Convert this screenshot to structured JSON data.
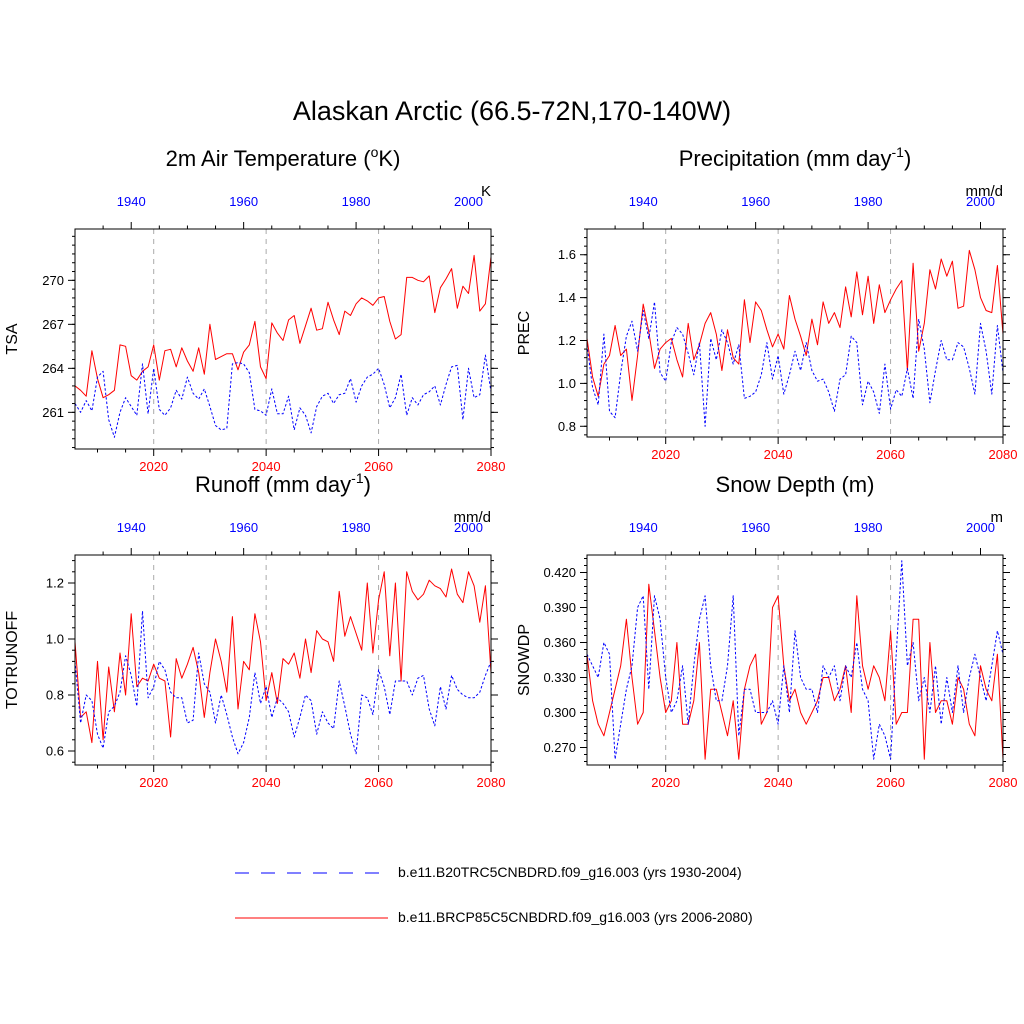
{
  "page": {
    "title": "Alaskan Arctic (66.5-72N,170-140W)"
  },
  "legend": {
    "hist_label": "b.e11.B20TRC5CNBDRD.f09_g16.003 (yrs 1930-2004)",
    "future_label": "b.e11.BRCP85C5CNBDRD.f09_g16.003 (yrs 2006-2080)",
    "hist_color": "#0000ff",
    "future_color": "#ff0000"
  },
  "chart_data": [
    {
      "type": "line",
      "title_main": "2m Air Temperature (",
      "title_sup": "o",
      "title_post": "K)",
      "ylabel": "TSA",
      "units": "K",
      "ylim": [
        258.5,
        273.5
      ],
      "yticks": [
        261,
        264,
        267,
        270
      ],
      "ytick_labels": [
        "261",
        "264",
        "267",
        "270"
      ],
      "bottom_axis": {
        "range": [
          2006,
          2080
        ],
        "ticks": [
          2020,
          2040,
          2060,
          2080
        ]
      },
      "top_axis": {
        "range": [
          1930,
          2004
        ],
        "ticks": [
          1940,
          1960,
          1980,
          2000
        ]
      },
      "dashed_gridlines_at": [
        2020,
        2040,
        2060
      ],
      "series": [
        {
          "name": "b.e11.BRCP85C5CNBDRD.f09_g16.003 (yrs 2006-2080)",
          "color": "#ff0000",
          "dash": "solid",
          "values": [
            262.8,
            262.5,
            262.1,
            265.2,
            263.3,
            262.0,
            262.2,
            262.5,
            265.6,
            265.5,
            263.5,
            263.2,
            263.8,
            264.1,
            265.6,
            263.2,
            265.2,
            265.3,
            264.1,
            265.4,
            264.5,
            263.8,
            265.4,
            263.6,
            267.0,
            264.6,
            264.8,
            265.0,
            265.0,
            263.9,
            265.1,
            265.6,
            267.2,
            264.1,
            263.3,
            267.1,
            266.4,
            265.9,
            267.3,
            267.6,
            265.7,
            266.9,
            268.1,
            266.6,
            266.7,
            268.5,
            267.3,
            266.3,
            267.9,
            267.6,
            268.4,
            268.8,
            268.6,
            268.3,
            268.8,
            268.9,
            267.2,
            266.0,
            266.3,
            270.2,
            270.2,
            270.0,
            269.9,
            270.3,
            267.8,
            269.5,
            270.1,
            270.8,
            268.1,
            269.6,
            269.1,
            271.7,
            267.9,
            268.4,
            271.6
          ]
        },
        {
          "name": "b.e11.B20TRC5CNBDRD.f09_g16.003 (yrs 1930-2004)",
          "color": "#0000ff",
          "dash": "dashed",
          "values": [
            261.6,
            261.0,
            261.8,
            261.1,
            263.4,
            263.8,
            260.5,
            259.3,
            261.0,
            262.0,
            261.4,
            260.8,
            264.3,
            260.9,
            264.0,
            261.2,
            260.8,
            261.3,
            262.5,
            261.9,
            263.4,
            262.3,
            261.9,
            262.6,
            261.4,
            260.1,
            259.8,
            259.9,
            264.3,
            264.4,
            264.3,
            263.7,
            261.2,
            261.1,
            260.8,
            262.6,
            260.9,
            260.9,
            262.1,
            259.8,
            261.3,
            260.8,
            259.6,
            261.4,
            262.1,
            262.3,
            261.6,
            262.2,
            262.3,
            263.3,
            261.7,
            262.8,
            263.4,
            263.6,
            264.0,
            262.9,
            261.3,
            262.0,
            263.6,
            260.8,
            262.0,
            261.5,
            262.2,
            262.4,
            262.8,
            261.5,
            262.9,
            264.1,
            264.2,
            260.5,
            264.0,
            262.0,
            262.2,
            264.9,
            262.4
          ]
        }
      ]
    },
    {
      "type": "line",
      "title_main": "Precipitation (mm day",
      "title_sup": "-1",
      "title_post": ")",
      "ylabel": "PREC",
      "units": "mm/d",
      "ylim": [
        0.75,
        1.72
      ],
      "yticks": [
        0.8,
        1.0,
        1.2,
        1.4,
        1.6
      ],
      "ytick_labels": [
        "0.8",
        "1.0",
        "1.2",
        "1.4",
        "1.6"
      ],
      "bottom_axis": {
        "range": [
          2006,
          2080
        ],
        "ticks": [
          2020,
          2040,
          2060,
          2080
        ]
      },
      "top_axis": {
        "range": [
          1930,
          2004
        ],
        "ticks": [
          1940,
          1960,
          1980,
          2000
        ]
      },
      "dashed_gridlines_at": [
        2020,
        2040,
        2060
      ],
      "series": [
        {
          "name": "b.e11.BRCP85C5CNBDRD.f09_g16.003 (yrs 2006-2080)",
          "color": "#ff0000",
          "dash": "solid",
          "values": [
            1.21,
            1.03,
            0.94,
            1.09,
            1.13,
            1.27,
            1.13,
            1.16,
            0.92,
            1.13,
            1.37,
            1.24,
            1.07,
            1.16,
            1.19,
            1.21,
            1.11,
            1.03,
            1.28,
            1.11,
            1.18,
            1.28,
            1.33,
            1.23,
            1.06,
            1.25,
            1.12,
            1.09,
            1.39,
            1.19,
            1.38,
            1.34,
            1.25,
            1.17,
            1.23,
            1.16,
            1.41,
            1.3,
            1.22,
            1.13,
            1.3,
            1.18,
            1.38,
            1.28,
            1.33,
            1.26,
            1.45,
            1.31,
            1.52,
            1.32,
            1.5,
            1.28,
            1.46,
            1.33,
            1.39,
            1.44,
            1.48,
            1.06,
            1.56,
            1.15,
            1.28,
            1.53,
            1.44,
            1.58,
            1.5,
            1.57,
            1.35,
            1.36,
            1.62,
            1.53,
            1.4,
            1.34,
            1.33,
            1.55,
            1.23
          ]
        },
        {
          "name": "b.e11.B20TRC5CNBDRD.f09_g16.003 (yrs 1930-2004)",
          "color": "#0000ff",
          "dash": "dashed",
          "values": [
            1.18,
            0.98,
            0.9,
            1.23,
            0.87,
            0.84,
            1.05,
            1.22,
            1.29,
            1.15,
            1.34,
            1.21,
            1.38,
            1.05,
            1.01,
            1.19,
            1.26,
            1.23,
            1.14,
            1.04,
            1.19,
            0.8,
            1.21,
            1.11,
            1.25,
            1.19,
            1.09,
            1.18,
            0.93,
            0.94,
            0.96,
            1.04,
            1.19,
            1.02,
            1.13,
            0.95,
            1.04,
            1.15,
            1.06,
            1.19,
            1.06,
            1.01,
            1.02,
            0.96,
            0.87,
            1.02,
            1.04,
            1.22,
            1.19,
            0.9,
            1.01,
            0.96,
            0.86,
            1.09,
            0.88,
            0.97,
            0.94,
            1.07,
            0.93,
            1.3,
            1.16,
            0.91,
            1.06,
            1.2,
            1.11,
            1.11,
            1.19,
            1.17,
            1.07,
            0.95,
            1.28,
            1.15,
            0.95,
            1.27,
            1.05
          ]
        }
      ]
    },
    {
      "type": "line",
      "title_main": "Runoff (mm day",
      "title_sup": "-1",
      "title_post": ")",
      "ylabel": "TOTRUNOFF",
      "units": "mm/d",
      "ylim": [
        0.55,
        1.3
      ],
      "yticks": [
        0.6,
        0.8,
        1.0,
        1.2
      ],
      "ytick_labels": [
        "0.6",
        "0.8",
        "1.0",
        "1.2"
      ],
      "bottom_axis": {
        "range": [
          2006,
          2080
        ],
        "ticks": [
          2020,
          2040,
          2060,
          2080
        ]
      },
      "top_axis": {
        "range": [
          1930,
          2004
        ],
        "ticks": [
          1940,
          1960,
          1980,
          2000
        ]
      },
      "dashed_gridlines_at": [
        2020,
        2040,
        2060
      ],
      "series": [
        {
          "name": "b.e11.BRCP85C5CNBDRD.f09_g16.003 (yrs 2006-2080)",
          "color": "#ff0000",
          "dash": "solid",
          "values": [
            0.99,
            0.72,
            0.74,
            0.63,
            0.92,
            0.64,
            0.9,
            0.74,
            0.95,
            0.8,
            1.09,
            0.83,
            0.86,
            0.85,
            0.91,
            0.86,
            0.85,
            0.65,
            0.93,
            0.86,
            0.91,
            0.97,
            0.88,
            0.72,
            0.88,
            1.0,
            0.92,
            0.81,
            1.08,
            0.75,
            0.92,
            0.89,
            1.09,
            0.99,
            0.78,
            0.88,
            0.77,
            0.93,
            0.91,
            0.95,
            0.86,
            1.0,
            0.88,
            1.03,
            1.0,
            0.99,
            0.92,
            1.17,
            1.01,
            1.08,
            1.02,
            0.96,
            1.2,
            0.95,
            1.14,
            1.24,
            0.94,
            1.2,
            0.85,
            1.24,
            1.17,
            1.14,
            1.16,
            1.21,
            1.19,
            1.18,
            1.15,
            1.25,
            1.16,
            1.13,
            1.24,
            1.19,
            1.06,
            1.19,
            0.88
          ]
        },
        {
          "name": "b.e11.B20TRC5CNBDRD.f09_g16.003 (yrs 1930-2004)",
          "color": "#0000ff",
          "dash": "dashed",
          "values": [
            0.92,
            0.7,
            0.8,
            0.78,
            0.66,
            0.61,
            0.74,
            0.76,
            0.81,
            0.94,
            0.87,
            0.76,
            1.1,
            0.79,
            0.83,
            0.92,
            0.89,
            0.81,
            0.79,
            0.79,
            0.7,
            0.71,
            0.95,
            0.84,
            0.81,
            0.7,
            0.8,
            0.73,
            0.65,
            0.59,
            0.63,
            0.72,
            0.88,
            0.77,
            0.83,
            0.72,
            0.79,
            0.77,
            0.74,
            0.65,
            0.72,
            0.8,
            0.78,
            0.66,
            0.74,
            0.7,
            0.68,
            0.85,
            0.76,
            0.66,
            0.59,
            0.8,
            0.79,
            0.73,
            0.89,
            0.83,
            0.73,
            0.85,
            0.85,
            0.85,
            0.8,
            0.86,
            0.87,
            0.75,
            0.69,
            0.83,
            0.75,
            0.87,
            0.82,
            0.8,
            0.79,
            0.79,
            0.81,
            0.87,
            0.92
          ]
        }
      ]
    },
    {
      "type": "line",
      "title_main": "Snow Depth (m)",
      "title_sup": "",
      "title_post": "",
      "ylabel": "SNOWDP",
      "units": "m",
      "ylim": [
        0.255,
        0.435
      ],
      "yticks": [
        0.27,
        0.3,
        0.33,
        0.36,
        0.39,
        0.42
      ],
      "ytick_labels": [
        "0.270",
        "0.300",
        "0.330",
        "0.360",
        "0.390",
        "0.420"
      ],
      "bottom_axis": {
        "range": [
          2006,
          2080
        ],
        "ticks": [
          2020,
          2040,
          2060,
          2080
        ]
      },
      "top_axis": {
        "range": [
          1930,
          2004
        ],
        "ticks": [
          1940,
          1960,
          1980,
          2000
        ]
      },
      "dashed_gridlines_at": [
        2020,
        2040,
        2060
      ],
      "series": [
        {
          "name": "b.e11.BRCP85C5CNBDRD.f09_g16.003 (yrs 2006-2080)",
          "color": "#ff0000",
          "dash": "solid",
          "values": [
            0.35,
            0.31,
            0.29,
            0.28,
            0.3,
            0.32,
            0.34,
            0.38,
            0.33,
            0.29,
            0.3,
            0.41,
            0.37,
            0.33,
            0.3,
            0.31,
            0.36,
            0.29,
            0.29,
            0.31,
            0.36,
            0.26,
            0.32,
            0.32,
            0.3,
            0.28,
            0.31,
            0.26,
            0.32,
            0.34,
            0.35,
            0.29,
            0.3,
            0.39,
            0.4,
            0.34,
            0.31,
            0.32,
            0.3,
            0.29,
            0.3,
            0.31,
            0.33,
            0.33,
            0.31,
            0.32,
            0.34,
            0.3,
            0.4,
            0.34,
            0.32,
            0.34,
            0.33,
            0.31,
            0.37,
            0.29,
            0.3,
            0.3,
            0.38,
            0.38,
            0.26,
            0.36,
            0.3,
            0.31,
            0.31,
            0.29,
            0.33,
            0.32,
            0.29,
            0.28,
            0.34,
            0.32,
            0.31,
            0.35,
            0.26
          ]
        },
        {
          "name": "b.e11.B20TRC5CNBDRD.f09_g16.003 (yrs 1930-2004)",
          "color": "#0000ff",
          "dash": "dashed",
          "values": [
            0.35,
            0.34,
            0.33,
            0.36,
            0.35,
            0.26,
            0.29,
            0.32,
            0.34,
            0.39,
            0.4,
            0.32,
            0.4,
            0.38,
            0.33,
            0.3,
            0.31,
            0.34,
            0.29,
            0.34,
            0.38,
            0.4,
            0.34,
            0.31,
            0.31,
            0.34,
            0.4,
            0.28,
            0.32,
            0.32,
            0.3,
            0.3,
            0.3,
            0.31,
            0.29,
            0.34,
            0.3,
            0.37,
            0.33,
            0.32,
            0.32,
            0.3,
            0.34,
            0.33,
            0.34,
            0.31,
            0.34,
            0.33,
            0.36,
            0.32,
            0.31,
            0.26,
            0.29,
            0.28,
            0.26,
            0.35,
            0.43,
            0.34,
            0.36,
            0.31,
            0.33,
            0.3,
            0.34,
            0.29,
            0.33,
            0.3,
            0.34,
            0.3,
            0.33,
            0.35,
            0.33,
            0.31,
            0.34,
            0.37,
            0.35
          ]
        }
      ]
    }
  ]
}
